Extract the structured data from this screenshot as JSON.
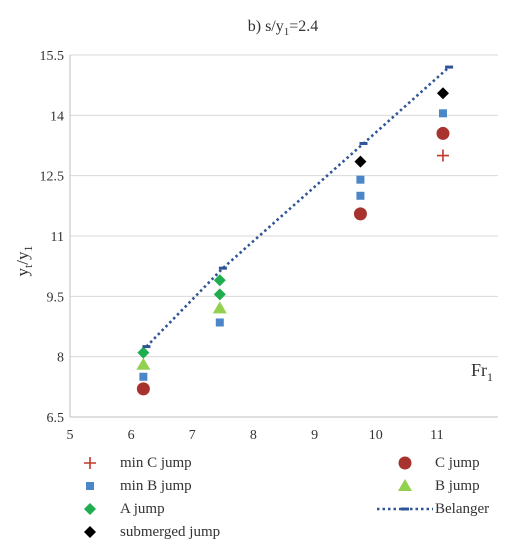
{
  "chart_data": {
    "type": "scatter",
    "title_prefix": "b) s/y",
    "title_sub": "1",
    "title_suffix": "=2.4",
    "xlabel_main": "Fr",
    "xlabel_sub": "1",
    "ylabel_parts": [
      "y",
      "t",
      "/y",
      "1"
    ],
    "xlim": [
      5,
      12
    ],
    "ylim": [
      6.5,
      15.5
    ],
    "x_ticks": [
      "5",
      "6",
      "7",
      "8",
      "9",
      "10",
      "11"
    ],
    "y_ticks": [
      "6.5",
      "8",
      "9.5",
      "11",
      "12.5",
      "14",
      "15.5"
    ],
    "grid": "horizontal",
    "legend_position": "bottom",
    "series": [
      {
        "name": "min C jump",
        "marker": "plus",
        "color": "#c0392b",
        "x": [
          11.1
        ],
        "y": [
          13.0
        ]
      },
      {
        "name": "C jump",
        "marker": "circle",
        "color": "#a8322d",
        "x": [
          6.2,
          9.75,
          11.1
        ],
        "y": [
          7.2,
          11.55,
          13.55
        ]
      },
      {
        "name": "min B jump",
        "marker": "square",
        "color": "#4a86c8",
        "x": [
          6.2,
          7.45,
          9.75,
          9.75,
          11.1
        ],
        "y": [
          7.5,
          8.85,
          12.0,
          12.4,
          14.05
        ]
      },
      {
        "name": "B jump",
        "marker": "triangle",
        "color": "#92d050",
        "x": [
          6.2,
          7.45
        ],
        "y": [
          7.8,
          9.2
        ]
      },
      {
        "name": "A jump",
        "marker": "diamond",
        "color": "#1fae4f",
        "x": [
          6.2,
          7.45,
          7.45
        ],
        "y": [
          8.1,
          9.55,
          9.9
        ]
      },
      {
        "name": "Belanger",
        "marker": "dotted-line",
        "color": "#2f5597",
        "x": [
          6.25,
          7.5,
          9.8,
          11.2
        ],
        "y": [
          8.25,
          10.2,
          13.3,
          15.2
        ]
      },
      {
        "name": "submerged jump",
        "marker": "diamond",
        "color": "#000000",
        "x": [
          9.75,
          11.1
        ],
        "y": [
          12.85,
          14.55
        ]
      }
    ]
  }
}
